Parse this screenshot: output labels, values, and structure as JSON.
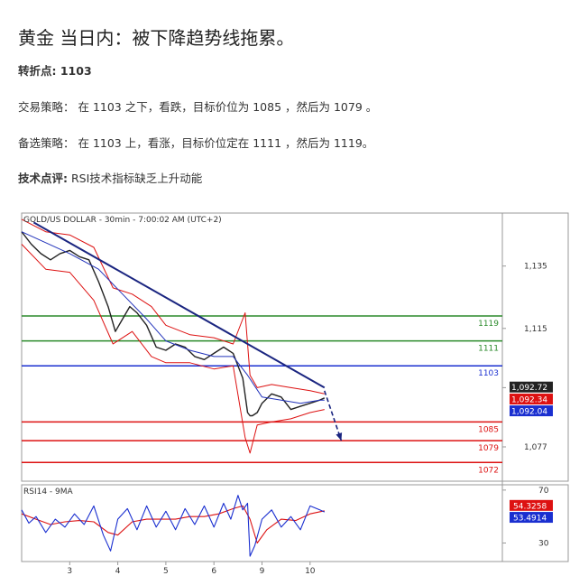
{
  "article": {
    "title": "黄金 当日内：被下降趋势线拖累。",
    "pivot": "转折点: 1103",
    "strategy": "交易策略： 在 1103 之下，看跌，目标价位为 1085 ，然后为 1079 。",
    "alternative": "备选策略： 在 1103 上，看涨，目标价位定在 1111 ，然后为 1119。",
    "comment_label": "技术点评:",
    "comment_text": " RSI技术指标缺乏上升动能"
  },
  "colors": {
    "candle": "#222222",
    "bollinger": "#dd1111",
    "moving_average": "#2233bb",
    "trendline": "#1a2580",
    "resistance": "#2a8a2a",
    "pivot": "#1a2fd0",
    "support": "#dd1111",
    "rsi_line": "#1a2fd0",
    "rsi_ma": "#dd1111"
  },
  "chart_data": [
    {
      "type": "line",
      "title": "GOLD/US DOLLAR - 30min - 7:00:02 AM (UTC+2)",
      "x_ticks": [
        "3",
        "4",
        "5",
        "6",
        "9",
        "10"
      ],
      "y_ticks": [
        "1,135",
        "1,115",
        "1,096",
        "1,077"
      ],
      "ylim": [
        1066,
        1152
      ],
      "x_range": [
        0,
        10
      ],
      "x_tick_positions": [
        1,
        2,
        3,
        4,
        5,
        6
      ],
      "series": [
        {
          "kind": "price",
          "x": [
            0,
            0.2,
            0.4,
            0.6,
            0.8,
            1.0,
            1.2,
            1.4,
            1.6,
            1.8,
            1.95,
            2.1,
            2.25,
            2.4,
            2.6,
            2.8,
            3.0,
            3.2,
            3.4,
            3.6,
            3.8,
            4.0,
            4.2,
            4.4,
            4.6,
            4.7,
            4.75,
            4.8,
            4.9,
            5.0,
            5.2,
            5.4,
            5.6,
            5.8,
            6.0,
            6.2,
            6.3
          ],
          "values": [
            1146,
            1142,
            1139,
            1137,
            1139,
            1140,
            1138,
            1137,
            1130,
            1122,
            1114,
            1118,
            1122,
            1120,
            1116,
            1109,
            1108,
            1110,
            1109,
            1106,
            1105,
            1107,
            1109,
            1107,
            1099,
            1088,
            1087,
            1087,
            1088,
            1091,
            1094,
            1093,
            1089,
            1090,
            1091,
            1092,
            1092.7
          ]
        },
        {
          "kind": "bollinger_upper",
          "x": [
            0,
            0.5,
            1.0,
            1.5,
            1.9,
            2.3,
            2.7,
            3.0,
            3.5,
            4.0,
            4.4,
            4.65,
            4.75,
            4.9,
            5.2,
            5.6,
            6.0,
            6.3
          ],
          "values": [
            1150,
            1146,
            1145,
            1141,
            1128,
            1126,
            1122,
            1116,
            1113,
            1112,
            1110,
            1120,
            1100,
            1096,
            1097,
            1096,
            1095,
            1094
          ]
        },
        {
          "kind": "bollinger_lower",
          "x": [
            0,
            0.5,
            1.0,
            1.5,
            1.9,
            2.3,
            2.7,
            3.0,
            3.5,
            4.0,
            4.4,
            4.65,
            4.75,
            4.9,
            5.2,
            5.6,
            6.0,
            6.3
          ],
          "values": [
            1142,
            1134,
            1133,
            1124,
            1110,
            1114,
            1106,
            1104,
            1104,
            1102,
            1103,
            1080,
            1075,
            1084,
            1085,
            1086,
            1088,
            1089
          ]
        },
        {
          "kind": "moving_average",
          "x": [
            0,
            1.0,
            1.6,
            2.1,
            2.6,
            3.0,
            3.5,
            4.0,
            4.4,
            4.7,
            5.0,
            5.4,
            5.8,
            6.2,
            6.3
          ],
          "values": [
            1146,
            1139,
            1134,
            1126,
            1118,
            1111,
            1108,
            1106,
            1106,
            1100,
            1093,
            1092,
            1091,
            1092,
            1092
          ]
        }
      ],
      "trendline": {
        "x": [
          0.25,
          6.3
        ],
        "values": [
          1149,
          1096
        ]
      },
      "projection_arrow": {
        "x": [
          6.3,
          6.65
        ],
        "values": [
          1095,
          1079
        ]
      },
      "levels": [
        {
          "value": 1119,
          "label": "1119",
          "kind": "resistance"
        },
        {
          "value": 1111,
          "label": "1111",
          "kind": "resistance"
        },
        {
          "value": 1103,
          "label": "1103",
          "kind": "pivot"
        },
        {
          "value": 1085,
          "label": "1085",
          "kind": "support"
        },
        {
          "value": 1079,
          "label": "1079",
          "kind": "support"
        },
        {
          "value": 1072,
          "label": "1072",
          "kind": "support"
        }
      ],
      "value_labels": [
        {
          "value": 1092.72,
          "label": "1,092.72",
          "bg": "#222222"
        },
        {
          "value": 1092.34,
          "label": "1,092.34",
          "bg": "#dd1111"
        },
        {
          "value": 1092.04,
          "label": "1,092.04",
          "bg": "#1a2fd0"
        }
      ]
    },
    {
      "type": "line",
      "title": "RSI14 - 9MA",
      "ylim": [
        16,
        74
      ],
      "y_ticks": [
        "70",
        "30"
      ],
      "series": [
        {
          "name": "RSI14",
          "x": [
            0,
            0.15,
            0.3,
            0.5,
            0.7,
            0.9,
            1.1,
            1.3,
            1.5,
            1.7,
            1.85,
            2.0,
            2.2,
            2.4,
            2.6,
            2.8,
            3.0,
            3.2,
            3.4,
            3.6,
            3.8,
            4.0,
            4.2,
            4.35,
            4.5,
            4.6,
            4.7,
            4.75,
            4.85,
            5.0,
            5.2,
            5.4,
            5.6,
            5.8,
            6.0,
            6.2,
            6.3
          ],
          "values": [
            55,
            45,
            50,
            38,
            48,
            42,
            52,
            44,
            58,
            36,
            24,
            48,
            56,
            40,
            58,
            42,
            54,
            40,
            56,
            44,
            58,
            42,
            60,
            48,
            66,
            55,
            60,
            20,
            28,
            48,
            55,
            42,
            50,
            40,
            58,
            55,
            53.49
          ]
        },
        {
          "name": "9MA",
          "x": [
            0,
            0.3,
            0.6,
            0.9,
            1.2,
            1.5,
            1.8,
            2.0,
            2.3,
            2.6,
            2.9,
            3.2,
            3.5,
            3.8,
            4.1,
            4.4,
            4.6,
            4.75,
            4.9,
            5.1,
            5.4,
            5.7,
            6.0,
            6.3
          ],
          "values": [
            52,
            48,
            44,
            46,
            47,
            46,
            38,
            36,
            46,
            48,
            48,
            48,
            50,
            50,
            52,
            56,
            58,
            48,
            30,
            40,
            48,
            47,
            52,
            54.33
          ]
        }
      ],
      "value_labels": [
        {
          "value": 54.33,
          "label": "54.3258",
          "bg": "#dd1111"
        },
        {
          "value": 53.49,
          "label": "53.4914",
          "bg": "#1a2fd0"
        }
      ]
    }
  ]
}
